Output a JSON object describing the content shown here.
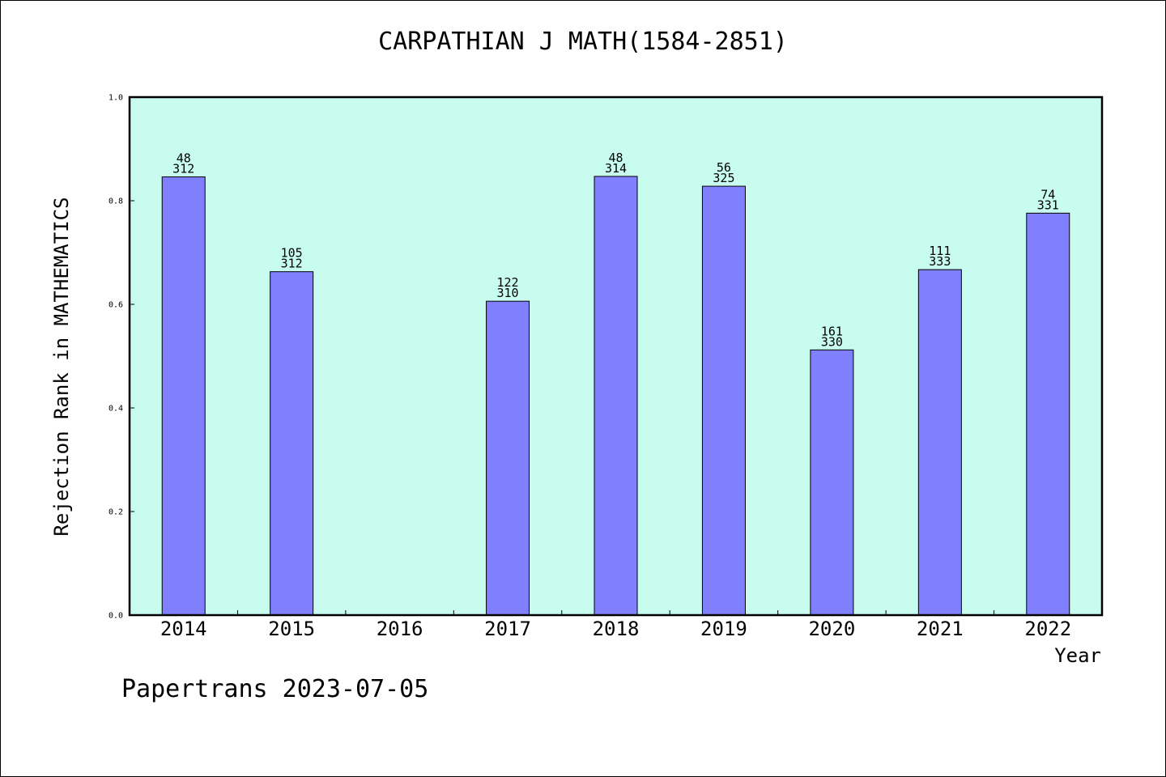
{
  "chart_data": {
    "type": "bar",
    "title": "CARPATHIAN J MATH(1584-2851)",
    "xlabel": "Year",
    "ylabel": "Rejection Rank in MATHEMATICS",
    "ylim": [
      0,
      1.0
    ],
    "yticks": [
      "0.0",
      "0.2",
      "0.4",
      "0.6",
      "0.8",
      "1.0"
    ],
    "categories": [
      "2014",
      "2015",
      "2016",
      "2017",
      "2018",
      "2019",
      "2020",
      "2021",
      "2022"
    ],
    "values": [
      0.846,
      0.663,
      null,
      0.606,
      0.847,
      0.828,
      0.512,
      0.667,
      0.776
    ],
    "labels": [
      [
        "48",
        "312"
      ],
      [
        "105",
        "312"
      ],
      null,
      [
        "122",
        "310"
      ],
      [
        "48",
        "314"
      ],
      [
        "56",
        "325"
      ],
      [
        "161",
        "330"
      ],
      [
        "111",
        "333"
      ],
      [
        "74",
        "331"
      ]
    ],
    "grid": false,
    "colors": {
      "plot_background": "#c8fcee",
      "bar": "#8080ff",
      "axis": "#000000"
    }
  },
  "footer": "Papertrans 2023-07-05"
}
